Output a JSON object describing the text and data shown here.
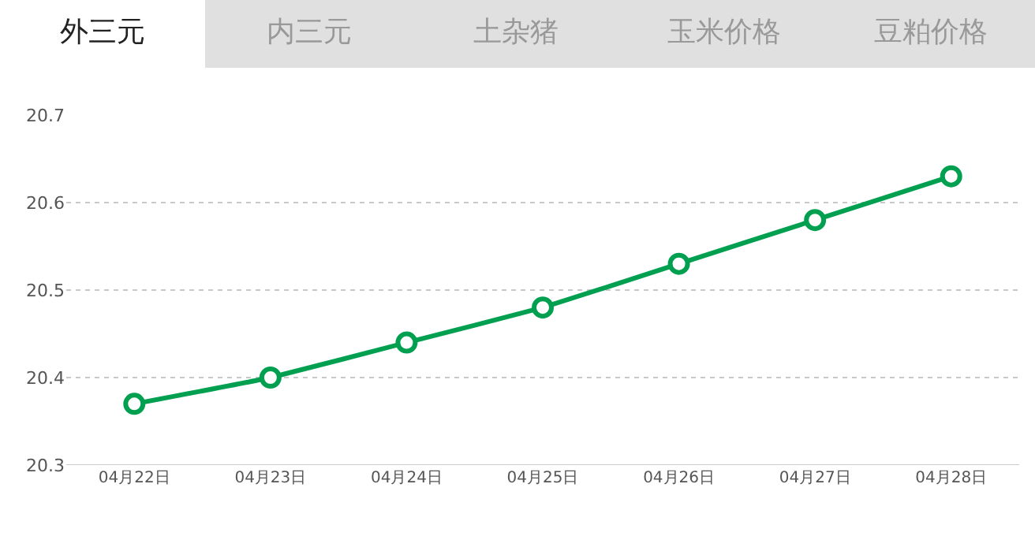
{
  "chart_data": {
    "type": "line",
    "annotations": [
      "外三元",
      "内三元",
      "土杂猪",
      "玉米价格",
      "豆粕价格"
    ],
    "categories": [
      "04月22日",
      "04月23日",
      "04月24日",
      "04月25日",
      "04月26日",
      "04月27日",
      "04月28日"
    ],
    "series": [
      {
        "color": "#00a050",
        "values": [
          20.37,
          20.4,
          20.44,
          20.48,
          20.53,
          20.58,
          20.63
        ]
      }
    ],
    "ylim": [
      20.3,
      20.7
    ],
    "yticks": [
      20.3,
      20.4,
      20.5,
      20.6,
      20.7
    ],
    "grid": "y",
    "marker": "circle",
    "line_style": "solid"
  }
}
